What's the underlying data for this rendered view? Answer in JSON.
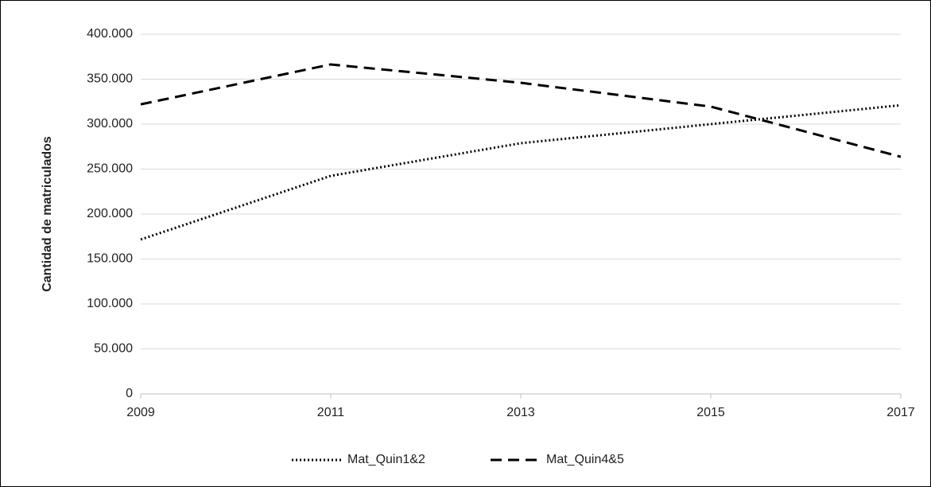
{
  "chart_data": {
    "type": "line",
    "y_label": "Cantidad de matriculados",
    "x": [
      2009,
      2011,
      2013,
      2015,
      2017
    ],
    "xlim": [
      2009,
      2017
    ],
    "xticks": [
      2009,
      2011,
      2013,
      2015,
      2017
    ],
    "ylim": [
      0,
      400000
    ],
    "yticks": [
      0,
      {
        "value": 50000,
        "label": "50.000"
      },
      {
        "value": 100000,
        "label": "100.000"
      },
      {
        "value": 150000,
        "label": "150.000"
      },
      {
        "value": 200000,
        "label": "200.000"
      },
      {
        "value": 250000,
        "label": "250.000"
      },
      {
        "value": 300000,
        "label": "300.000"
      },
      {
        "value": 350000,
        "label": "350.000"
      },
      {
        "value": 400000,
        "label": "400.000"
      }
    ],
    "grid": true,
    "legend": "bottom",
    "series": [
      {
        "name": "Mat_Quin1&2",
        "color": "#000000",
        "dash": "dotted",
        "values": [
          171700,
          242500,
          278800,
          300000,
          321000
        ]
      },
      {
        "name": "Mat_Quin4&5",
        "color": "#000000",
        "dash": "dashed",
        "values": [
          322000,
          366400,
          346000,
          319500,
          263700
        ]
      }
    ]
  }
}
